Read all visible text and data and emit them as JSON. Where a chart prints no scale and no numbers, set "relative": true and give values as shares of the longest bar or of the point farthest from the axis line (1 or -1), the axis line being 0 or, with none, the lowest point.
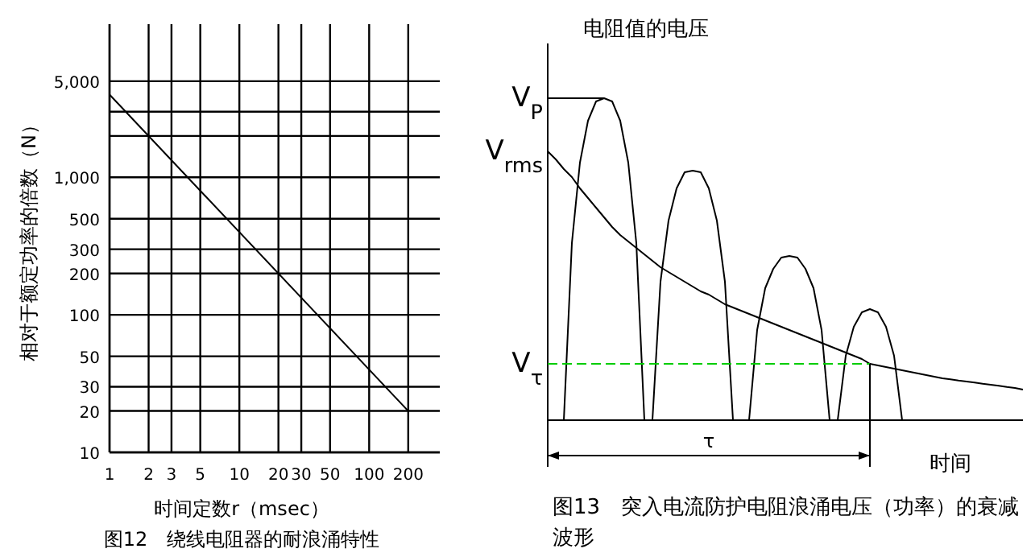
{
  "chart_data": [
    {
      "type": "line",
      "log": "xy",
      "grid": true,
      "xlabel": "时间定数r（msec）",
      "ylabel": "相对于额定功率的倍数（N）",
      "annotations": [
        "图12　绕线电阻器的耐浪涌特性"
      ],
      "xlim": [
        1,
        350
      ],
      "ylim": [
        10,
        13000
      ],
      "xticks": [
        1,
        2,
        3,
        5,
        10,
        20,
        30,
        50,
        100,
        200
      ],
      "yticks": [
        10,
        20,
        30,
        50,
        100,
        200,
        300,
        500,
        {
          "value": 1000,
          "label": "1,000"
        },
        {
          "value": 2000,
          "label": null
        },
        {
          "value": 3000,
          "label": null
        },
        {
          "value": 5000,
          "label": "5,000"
        }
      ],
      "series": [
        {
          "color": "#000000",
          "x": [
            1,
            200
          ],
          "values": [
            4000,
            20
          ]
        }
      ]
    },
    {
      "type": "line",
      "relative": true,
      "ylabel": "电阻值的电压",
      "xlabel": "时间",
      "categories": [
        null,
        null,
        null,
        null,
        null,
        null,
        null,
        null,
        null,
        null,
        null,
        null,
        null,
        null,
        null,
        null,
        null,
        null,
        null,
        null,
        null,
        null,
        null,
        null,
        null,
        null,
        null,
        null,
        null,
        null,
        null,
        null,
        null,
        null,
        null,
        null,
        null,
        null,
        null,
        null,
        null,
        null,
        null,
        null,
        null,
        null,
        null,
        null,
        null,
        null,
        null,
        null,
        null,
        null,
        null,
        null,
        null,
        null,
        null,
        null
      ],
      "annotations": [
        "V$_{P}$",
        "V$_{rms}$",
        "V$_{τ}$",
        "τ",
        "图13　突入电流防护电阻浪涌电压（功率）的衰减波形"
      ],
      "series": [
        {
          "color": "#000000",
          "values": [
            null,
            null,
            0,
            0.55,
            0.8,
            0.93,
            0.99,
            1,
            0.99,
            0.93,
            0.8,
            0.55,
            0,
            null,
            null,
            null,
            null,
            null,
            null,
            null,
            null,
            null,
            null,
            null,
            null,
            null,
            null,
            null,
            null,
            null,
            null,
            null,
            null,
            null,
            null,
            null,
            null,
            null,
            null,
            null,
            null,
            null,
            null,
            null,
            null,
            null,
            null,
            null,
            null,
            null,
            null,
            null,
            null,
            null,
            null,
            null,
            null,
            null,
            null,
            null
          ]
        },
        {
          "color": "#000000",
          "values": [
            null,
            null,
            null,
            null,
            null,
            null,
            null,
            null,
            null,
            null,
            null,
            null,
            null,
            0,
            0.43,
            0.62,
            0.72,
            0.77,
            0.775,
            0.77,
            0.72,
            0.62,
            0.43,
            0,
            null,
            null,
            null,
            null,
            null,
            null,
            null,
            null,
            null,
            null,
            null,
            null,
            null,
            null,
            null,
            null,
            null,
            null,
            null,
            null,
            null,
            null,
            null,
            null,
            null,
            null,
            null,
            null,
            null,
            null,
            null,
            null,
            null,
            null,
            null,
            null
          ]
        },
        {
          "color": "#000000",
          "values": [
            null,
            null,
            null,
            null,
            null,
            null,
            null,
            null,
            null,
            null,
            null,
            null,
            null,
            null,
            null,
            null,
            null,
            null,
            null,
            null,
            null,
            null,
            null,
            null,
            null,
            0,
            0.28,
            0.41,
            0.47,
            0.505,
            0.51,
            0.505,
            0.47,
            0.41,
            0.28,
            0,
            null,
            null,
            null,
            null,
            null,
            null,
            null,
            null,
            null,
            null,
            null,
            null,
            null,
            null,
            null,
            null,
            null,
            null,
            null,
            null,
            null,
            null,
            null,
            null
          ]
        },
        {
          "color": "#000000",
          "values": [
            null,
            null,
            null,
            null,
            null,
            null,
            null,
            null,
            null,
            null,
            null,
            null,
            null,
            null,
            null,
            null,
            null,
            null,
            null,
            null,
            null,
            null,
            null,
            null,
            null,
            null,
            null,
            null,
            null,
            null,
            null,
            null,
            null,
            null,
            null,
            null,
            0,
            0.2,
            0.29,
            0.335,
            0.345,
            0.335,
            0.29,
            0.2,
            0,
            null,
            null,
            null,
            null,
            null,
            null,
            null,
            null,
            null,
            null,
            null,
            null,
            null,
            null,
            null
          ]
        },
        {
          "color": "#000000",
          "values": [
            0.835,
            0.81,
            0.78,
            0.755,
            0.72,
            0.69,
            0.66,
            0.63,
            0.6,
            0.575,
            0.555,
            0.535,
            0.515,
            0.495,
            0.475,
            0.46,
            0.445,
            0.43,
            0.415,
            0.4,
            0.39,
            0.375,
            0.36,
            0.35,
            0.34,
            0.33,
            0.32,
            0.31,
            0.3,
            0.29,
            0.28,
            0.27,
            0.26,
            0.25,
            0.24,
            0.23,
            0.22,
            0.21,
            0.2,
            0.19,
            0.175,
            0.17,
            0.165,
            0.16,
            0.155,
            0.15,
            0.145,
            0.14,
            0.135,
            0.13,
            0.127,
            0.123,
            0.12,
            0.117,
            0.113,
            0.11,
            0.107,
            0.103,
            0.1,
            0.095
          ]
        },
        {
          "color": "#000000",
          "values": [
            1,
            1,
            1,
            1,
            1,
            1,
            1,
            1,
            null,
            null,
            null,
            null,
            null,
            null,
            null,
            null,
            null,
            null,
            null,
            null,
            null,
            null,
            null,
            null,
            null,
            null,
            null,
            null,
            null,
            null,
            null,
            null,
            null,
            null,
            null,
            null,
            null,
            null,
            null,
            null,
            null,
            null,
            null,
            null,
            null,
            null,
            null,
            null,
            null,
            null,
            null,
            null,
            null,
            null,
            null,
            null,
            null,
            null,
            null,
            null
          ]
        },
        {
          "color": "#00cc00",
          "line_style": "dashed",
          "values": [
            0.175,
            0.175,
            0.175,
            0.175,
            0.175,
            0.175,
            0.175,
            0.175,
            0.175,
            0.175,
            0.175,
            0.175,
            0.175,
            0.175,
            0.175,
            0.175,
            0.175,
            0.175,
            0.175,
            0.175,
            0.175,
            0.175,
            0.175,
            0.175,
            0.175,
            0.175,
            0.175,
            0.175,
            0.175,
            0.175,
            0.175,
            0.175,
            0.175,
            0.175,
            0.175,
            0.175,
            0.175,
            0.175,
            0.175,
            0.175,
            0.175,
            null,
            null,
            null,
            null,
            null,
            null,
            null,
            null,
            null,
            null,
            null,
            null,
            null,
            null,
            null,
            null,
            null,
            null,
            null
          ]
        }
      ]
    }
  ]
}
